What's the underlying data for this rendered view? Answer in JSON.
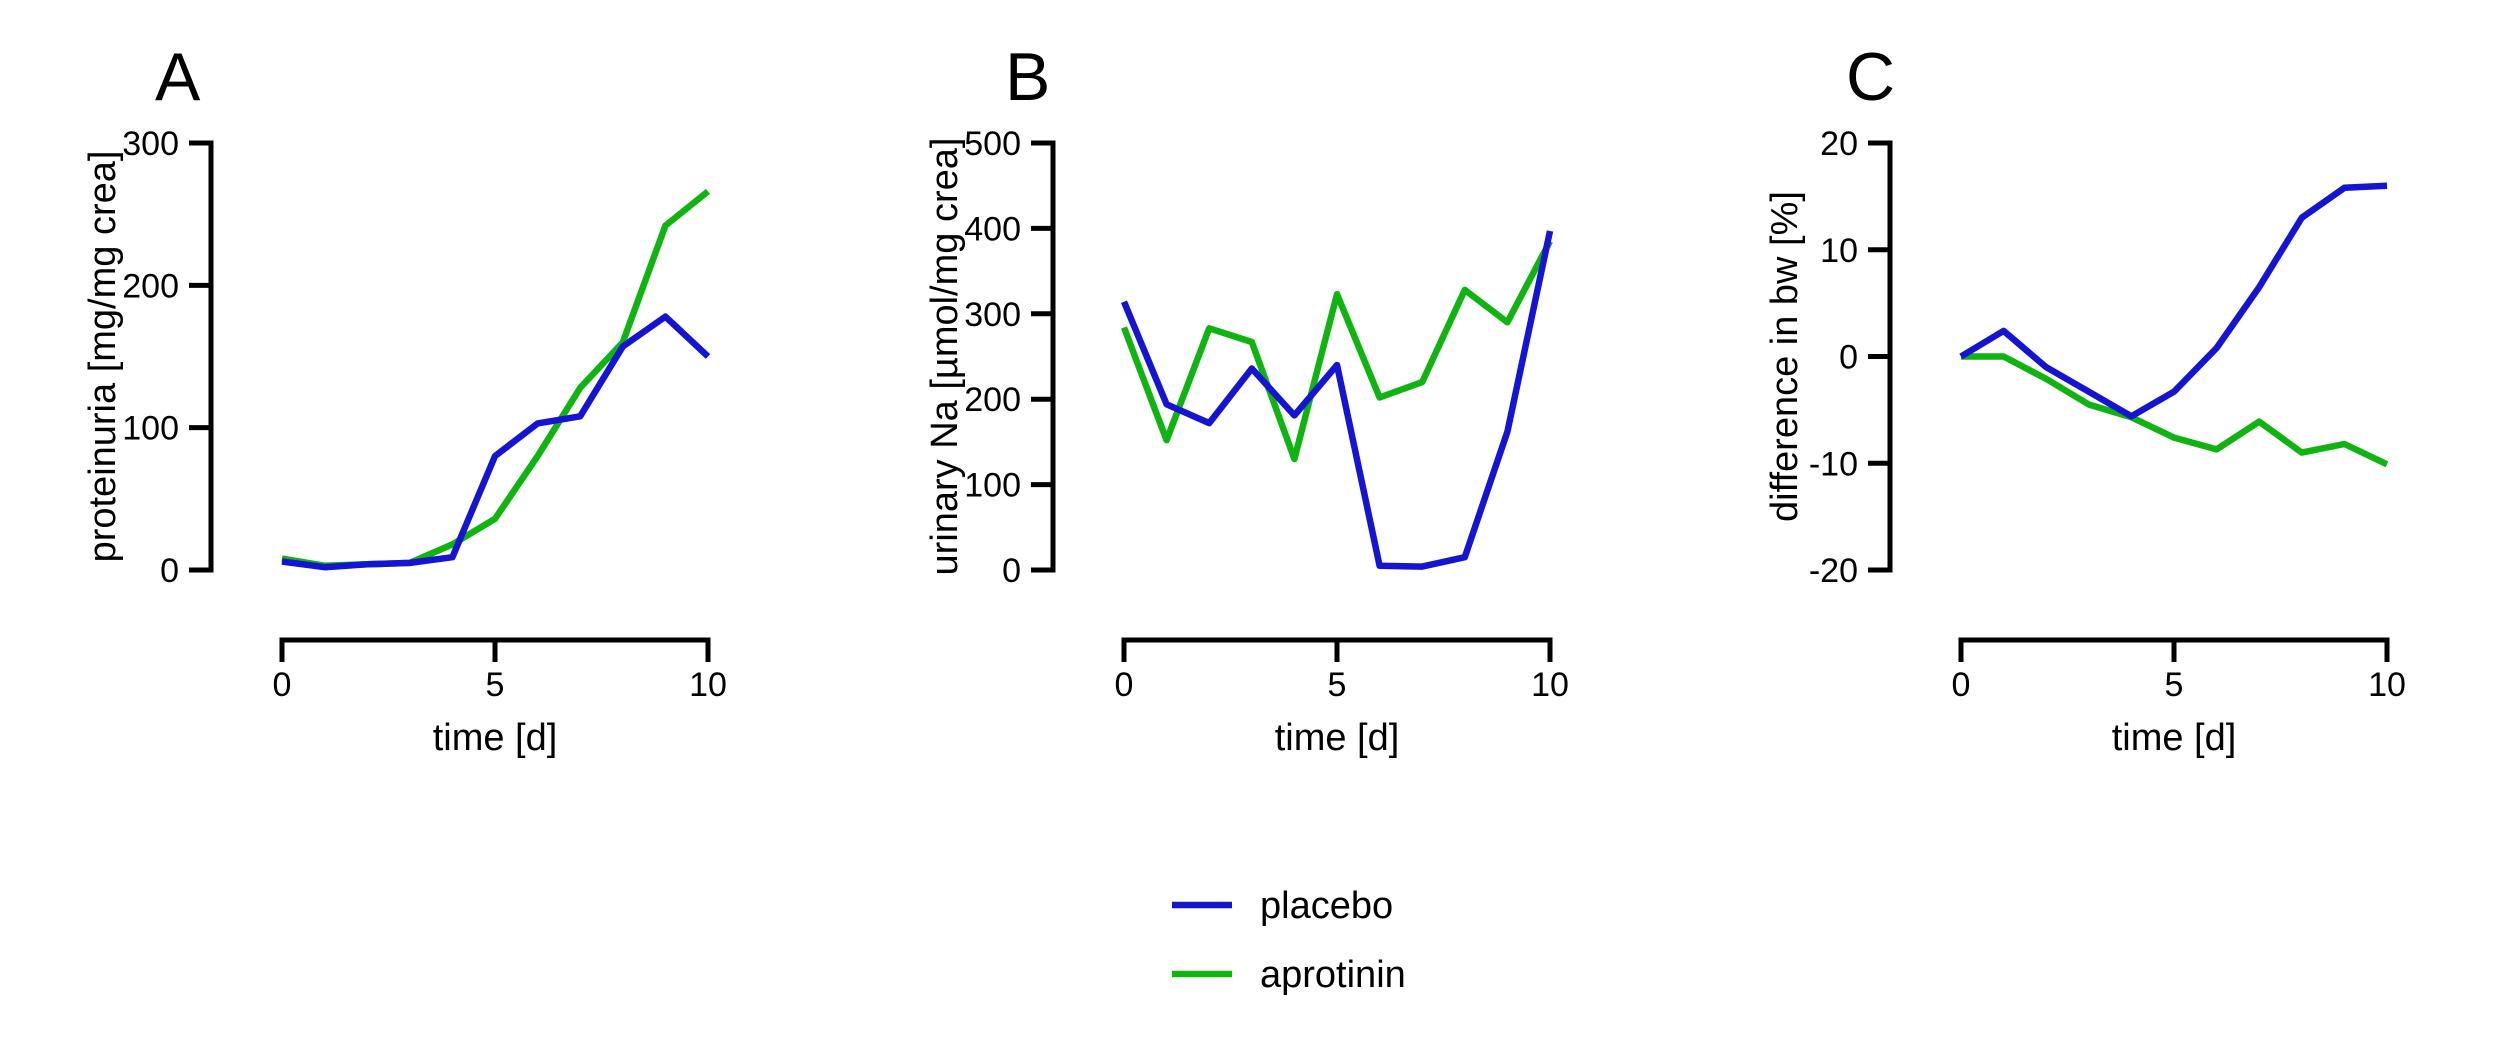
{
  "colors": {
    "placebo": "#1414d2",
    "aprotinin": "#10b410"
  },
  "legend": [
    {
      "name": "placebo",
      "color": "#1414d2"
    },
    {
      "name": "aprotinin",
      "color": "#10b410"
    }
  ],
  "chart_data": [
    {
      "panel": "A",
      "type": "line",
      "xlabel": "time [d]",
      "ylabel": "proteinuria [mg/mg crea]",
      "xlim": [
        0,
        10
      ],
      "ylim": [
        0,
        300
      ],
      "xticks": [
        0,
        5,
        10
      ],
      "yticks": [
        0,
        100,
        200,
        300
      ],
      "x": [
        0,
        1,
        2,
        3,
        4,
        5,
        6,
        7,
        8,
        9,
        10
      ],
      "series": [
        {
          "name": "placebo",
          "values": [
            6,
            2,
            4,
            5,
            9,
            80,
            103,
            108,
            157,
            178,
            150
          ]
        },
        {
          "name": "aprotinin",
          "values": [
            8,
            3,
            4,
            5,
            18,
            36,
            80,
            128,
            160,
            242,
            266
          ]
        }
      ]
    },
    {
      "panel": "B",
      "type": "line",
      "xlabel": "time [d]",
      "ylabel": "urinary Na [µmol/mg crea]",
      "xlim": [
        0,
        10
      ],
      "ylim": [
        0,
        500
      ],
      "xticks": [
        0,
        5,
        10
      ],
      "yticks": [
        0,
        100,
        200,
        300,
        400,
        500
      ],
      "x": [
        0,
        1,
        2,
        3,
        4,
        5,
        6,
        7,
        8,
        9,
        10
      ],
      "series": [
        {
          "name": "placebo",
          "values": [
            314,
            194,
            172,
            236,
            181,
            240,
            5,
            4,
            15,
            162,
            397
          ]
        },
        {
          "name": "aprotinin",
          "values": [
            284,
            152,
            283,
            267,
            130,
            323,
            202,
            220,
            328,
            290,
            385
          ]
        }
      ]
    },
    {
      "panel": "C",
      "type": "line",
      "xlabel": "time [d]",
      "ylabel": "difference in bw [%]",
      "xlim": [
        0,
        10
      ],
      "ylim": [
        -20,
        20
      ],
      "xticks": [
        0,
        5,
        10
      ],
      "yticks": [
        -20,
        -10,
        0,
        10,
        20
      ],
      "x": [
        0,
        1,
        2,
        3,
        4,
        5,
        6,
        7,
        8,
        9,
        10
      ],
      "series": [
        {
          "name": "placebo",
          "values": [
            0,
            2.4,
            -1,
            -3.3,
            -5.6,
            -3.3,
            0.8,
            6.5,
            13,
            15.8,
            16
          ]
        },
        {
          "name": "aprotinin",
          "values": [
            0,
            0,
            -2.1,
            -4.5,
            -5.7,
            -7.6,
            -8.7,
            -6.1,
            -9,
            -8.2,
            -10.1
          ]
        }
      ]
    }
  ]
}
